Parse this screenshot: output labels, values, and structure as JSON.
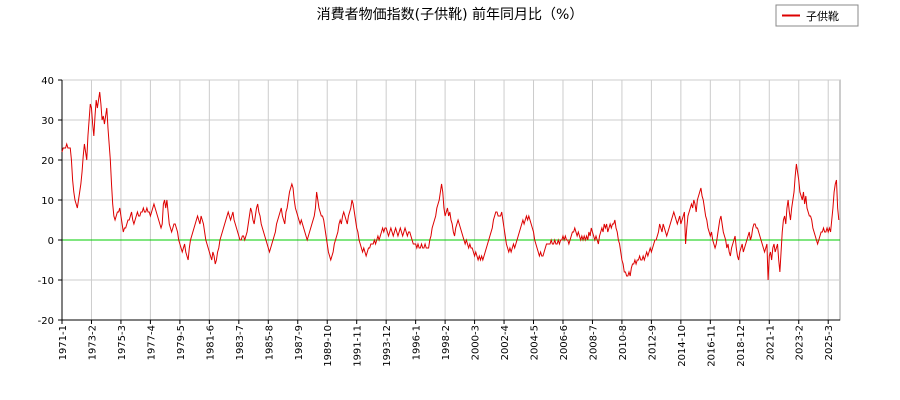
{
  "chart_data": {
    "type": "line",
    "title": "消費者物価指数(子供靴) 前年同月比（%）",
    "ylim": [
      -20,
      40
    ],
    "yticks": [
      -20,
      -10,
      0,
      10,
      20,
      30,
      40
    ],
    "grid": true,
    "zero_line_color": "#00cc00",
    "legend": "top-right",
    "categories": [
      "1971-1",
      null,
      null,
      null,
      null,
      null,
      null,
      null,
      null,
      null,
      null,
      null,
      null,
      null,
      null,
      null,
      null,
      null,
      null,
      null,
      null,
      null,
      null,
      null,
      null,
      "1973-2",
      null,
      null,
      null,
      null,
      null,
      null,
      null,
      null,
      null,
      null,
      null,
      null,
      null,
      null,
      null,
      null,
      null,
      null,
      null,
      null,
      null,
      null,
      null,
      null,
      "1975-3",
      null,
      null,
      null,
      null,
      null,
      null,
      null,
      null,
      null,
      null,
      null,
      null,
      null,
      null,
      null,
      null,
      null,
      null,
      null,
      null,
      null,
      null,
      null,
      null,
      "1977-4",
      null,
      null,
      null,
      null,
      null,
      null,
      null,
      null,
      null,
      null,
      null,
      null,
      null,
      null,
      null,
      null,
      null,
      null,
      null,
      null,
      null,
      null,
      null,
      null,
      "1979-5",
      null,
      null,
      null,
      null,
      null,
      null,
      null,
      null,
      null,
      null,
      null,
      null,
      null,
      null,
      null,
      null,
      null,
      null,
      null,
      null,
      null,
      null,
      null,
      null,
      "1981-6",
      null,
      null,
      null,
      null,
      null,
      null,
      null,
      null,
      null,
      null,
      null,
      null,
      null,
      null,
      null,
      null,
      null,
      null,
      null,
      null,
      null,
      null,
      null,
      null,
      "1983-7",
      null,
      null,
      null,
      null,
      null,
      null,
      null,
      null,
      null,
      null,
      null,
      null,
      null,
      null,
      null,
      null,
      null,
      null,
      null,
      null,
      null,
      null,
      null,
      null,
      "1985-8",
      null,
      null,
      null,
      null,
      null,
      null,
      null,
      null,
      null,
      null,
      null,
      null,
      null,
      null,
      null,
      null,
      null,
      null,
      null,
      null,
      null,
      null,
      null,
      null,
      "1987-9",
      null,
      null,
      null,
      null,
      null,
      null,
      null,
      null,
      null,
      null,
      null,
      null,
      null,
      null,
      null,
      null,
      null,
      null,
      null,
      null,
      null,
      null,
      null,
      null,
      "1989-10",
      null,
      null,
      null,
      null,
      null,
      null,
      null,
      null,
      null,
      null,
      null,
      null,
      null,
      null,
      null,
      null,
      null,
      null,
      null,
      null,
      null,
      null,
      null,
      null,
      "1991-11",
      null,
      null,
      null,
      null,
      null,
      null,
      null,
      null,
      null,
      null,
      null,
      null,
      null,
      null,
      null,
      null,
      null,
      null,
      null,
      null,
      null,
      null,
      null,
      null,
      "1993-12",
      null,
      null,
      null,
      null,
      null,
      null,
      null,
      null,
      null,
      null,
      null,
      null,
      null,
      null,
      null,
      null,
      null,
      null,
      null,
      null,
      null,
      null,
      null,
      null,
      "1996-1",
      null,
      null,
      null,
      null,
      null,
      null,
      null,
      null,
      null,
      null,
      null,
      null,
      null,
      null,
      null,
      null,
      null,
      null,
      null,
      null,
      null,
      null,
      null,
      null,
      "1998-2",
      null,
      null,
      null,
      null,
      null,
      null,
      null,
      null,
      null,
      null,
      null,
      null,
      null,
      null,
      null,
      null,
      null,
      null,
      null,
      null,
      null,
      null,
      null,
      null,
      "2000-3",
      null,
      null,
      null,
      null,
      null,
      null,
      null,
      null,
      null,
      null,
      null,
      null,
      null,
      null,
      null,
      null,
      null,
      null,
      null,
      null,
      null,
      null,
      null,
      null,
      "2002-4",
      null,
      null,
      null,
      null,
      null,
      null,
      null,
      null,
      null,
      null,
      null,
      null,
      null,
      null,
      null,
      null,
      null,
      null,
      null,
      null,
      null,
      null,
      null,
      null,
      "2004-5",
      null,
      null,
      null,
      null,
      null,
      null,
      null,
      null,
      null,
      null,
      null,
      null,
      null,
      null,
      null,
      null,
      null,
      null,
      null,
      null,
      null,
      null,
      null,
      null,
      "2006-6",
      null,
      null,
      null,
      null,
      null,
      null,
      null,
      null,
      null,
      null,
      null,
      null,
      null,
      null,
      null,
      null,
      null,
      null,
      null,
      null,
      null,
      null,
      null,
      null,
      "2008-7",
      null,
      null,
      null,
      null,
      null,
      null,
      null,
      null,
      null,
      null,
      null,
      null,
      null,
      null,
      null,
      null,
      null,
      null,
      null,
      null,
      null,
      null,
      null,
      null,
      "2010-8",
      null,
      null,
      null,
      null,
      null,
      null,
      null,
      null,
      null,
      null,
      null,
      null,
      null,
      null,
      null,
      null,
      null,
      null,
      null,
      null,
      null,
      null,
      null,
      null,
      "2012-9",
      null,
      null,
      null,
      null,
      null,
      null,
      null,
      null,
      null,
      null,
      null,
      null,
      null,
      null,
      null,
      null,
      null,
      null,
      null,
      null,
      null,
      null,
      null,
      null,
      "2014-10",
      null,
      null,
      null,
      null,
      null,
      null,
      null,
      null,
      null,
      null,
      null,
      null,
      null,
      null,
      null,
      null,
      null,
      null,
      null,
      null,
      null,
      null,
      null,
      null,
      "2016-11",
      null,
      null,
      null,
      null,
      null,
      null,
      null,
      null,
      null,
      null,
      null,
      null,
      null,
      null,
      null,
      null,
      null,
      null,
      null,
      null,
      null,
      null,
      null,
      null,
      "2018-12",
      null,
      null,
      null,
      null,
      null,
      null,
      null,
      null,
      null,
      null,
      null,
      null,
      null,
      null,
      null,
      null,
      null,
      null,
      null,
      null,
      null,
      null,
      null,
      null,
      "2021-1",
      null,
      null,
      null,
      null,
      null,
      null,
      null,
      null,
      null,
      null,
      null,
      null,
      null,
      null,
      null,
      null,
      null,
      null,
      null,
      null,
      null,
      null,
      null,
      null,
      "2023-2",
      null,
      null,
      null,
      null,
      null,
      null,
      null,
      null,
      null,
      null,
      null,
      null,
      null,
      null,
      null,
      null,
      null,
      null,
      null,
      null,
      null,
      null,
      null,
      null,
      "2025-3",
      null,
      null,
      null,
      null,
      null,
      null,
      null,
      null,
      null
    ],
    "series": [
      {
        "name": "子供靴",
        "color": "#dd0000",
        "values": [
          22,
          23,
          23,
          23,
          24,
          23,
          23,
          23,
          20,
          15,
          12,
          10,
          9,
          8,
          10,
          12,
          14,
          17,
          21,
          24,
          22,
          20,
          26,
          30,
          34,
          33,
          29,
          26,
          31,
          35,
          33,
          35,
          37,
          34,
          30,
          31,
          29,
          31,
          33,
          28,
          24,
          20,
          14,
          9,
          6,
          5,
          6,
          7,
          7,
          8,
          6,
          4,
          2,
          3,
          3,
          4,
          5,
          5,
          6,
          7,
          5,
          4,
          5,
          6,
          7,
          6,
          6,
          7,
          7,
          8,
          7,
          7,
          8,
          7,
          7,
          6,
          7,
          8,
          9,
          8,
          7,
          6,
          5,
          4,
          3,
          4,
          9,
          10,
          8,
          10,
          7,
          4,
          3,
          2,
          3,
          4,
          4,
          3,
          2,
          0,
          -1,
          -2,
          -3,
          -2,
          -1,
          -3,
          -4,
          -5,
          -2,
          0,
          1,
          2,
          3,
          4,
          5,
          6,
          5,
          4,
          6,
          5,
          4,
          2,
          0,
          -1,
          -2,
          -3,
          -4,
          -5,
          -3,
          -4,
          -6,
          -5,
          -3,
          -2,
          0,
          1,
          2,
          3,
          4,
          5,
          6,
          7,
          6,
          5,
          6,
          7,
          5,
          4,
          3,
          2,
          1,
          0,
          0,
          1,
          1,
          0,
          1,
          2,
          4,
          6,
          8,
          7,
          5,
          4,
          6,
          8,
          9,
          7,
          6,
          4,
          3,
          2,
          1,
          0,
          -1,
          -2,
          -3,
          -2,
          -1,
          0,
          1,
          2,
          4,
          5,
          6,
          7,
          8,
          6,
          5,
          4,
          7,
          8,
          10,
          12,
          13,
          14,
          13,
          10,
          8,
          7,
          6,
          5,
          4,
          5,
          4,
          3,
          2,
          1,
          0,
          1,
          2,
          3,
          4,
          5,
          6,
          8,
          12,
          10,
          8,
          7,
          6,
          6,
          5,
          3,
          1,
          -1,
          -3,
          -4,
          -5,
          -4,
          -3,
          -1,
          0,
          1,
          2,
          4,
          5,
          4,
          6,
          7,
          6,
          5,
          4,
          6,
          7,
          8,
          10,
          9,
          7,
          5,
          3,
          2,
          0,
          -1,
          -2,
          -3,
          -2,
          -3,
          -4,
          -3,
          -2,
          -2,
          -1,
          -1,
          -1,
          0,
          -1,
          0,
          1,
          0,
          1,
          2,
          3,
          2,
          3,
          3,
          2,
          1,
          2,
          3,
          2,
          1,
          2,
          3,
          2,
          1,
          2,
          3,
          2,
          1,
          2,
          3,
          2,
          1,
          2,
          2,
          1,
          0,
          -1,
          -1,
          -1,
          -2,
          -1,
          -2,
          -2,
          -1,
          -2,
          -2,
          -1,
          -2,
          -2,
          -2,
          0,
          1,
          3,
          4,
          5,
          6,
          8,
          9,
          10,
          12,
          14,
          12,
          8,
          6,
          7,
          8,
          6,
          7,
          5,
          4,
          2,
          1,
          3,
          4,
          5,
          4,
          3,
          2,
          1,
          0,
          -1,
          0,
          -1,
          -2,
          -1,
          -2,
          -2,
          -3,
          -4,
          -3,
          -4,
          -5,
          -4,
          -5,
          -4,
          -5,
          -4,
          -3,
          -2,
          -1,
          0,
          1,
          2,
          3,
          5,
          6,
          7,
          7,
          6,
          6,
          6,
          7,
          5,
          3,
          1,
          -1,
          -2,
          -3,
          -2,
          -3,
          -2,
          -1,
          -2,
          -1,
          0,
          1,
          2,
          3,
          4,
          5,
          4,
          5,
          6,
          5,
          6,
          5,
          4,
          3,
          2,
          0,
          -1,
          -2,
          -3,
          -4,
          -3,
          -4,
          -4,
          -3,
          -2,
          -1,
          -1,
          -1,
          -1,
          0,
          -1,
          -1,
          0,
          -1,
          -1,
          0,
          -1,
          0,
          0,
          1,
          0,
          1,
          0,
          0,
          -1,
          0,
          1,
          2,
          2,
          3,
          2,
          1,
          2,
          1,
          0,
          1,
          0,
          1,
          0,
          1,
          0,
          2,
          1,
          3,
          2,
          1,
          0,
          1,
          0,
          -1,
          1,
          2,
          3,
          2,
          4,
          3,
          4,
          2,
          3,
          4,
          3,
          4,
          4,
          5,
          3,
          2,
          0,
          -1,
          -3,
          -5,
          -6,
          -8,
          -8,
          -9,
          -9,
          -8,
          -9,
          -7,
          -6,
          -6,
          -5,
          -6,
          -5,
          -5,
          -4,
          -5,
          -5,
          -4,
          -5,
          -4,
          -3,
          -4,
          -3,
          -2,
          -3,
          -2,
          -1,
          0,
          0,
          1,
          2,
          4,
          3,
          2,
          4,
          3,
          2,
          1,
          2,
          3,
          4,
          5,
          6,
          7,
          6,
          5,
          4,
          5,
          6,
          4,
          5,
          6,
          7,
          -1,
          3,
          6,
          7,
          8,
          9,
          8,
          10,
          9,
          7,
          10,
          11,
          12,
          13,
          11,
          10,
          8,
          6,
          5,
          3,
          2,
          1,
          2,
          0,
          -1,
          -2,
          -1,
          1,
          3,
          5,
          6,
          4,
          2,
          1,
          0,
          -2,
          -1,
          -3,
          -4,
          -2,
          -1,
          0,
          1,
          -2,
          -4,
          -5,
          -3,
          -2,
          -1,
          -3,
          -2,
          -1,
          0,
          1,
          2,
          0,
          1,
          3,
          4,
          4,
          3,
          3,
          2,
          1,
          0,
          -1,
          -2,
          -3,
          -2,
          -1,
          -10,
          -4,
          -3,
          -5,
          -2,
          -1,
          -3,
          -2,
          -1,
          -5,
          -8,
          -3,
          2,
          5,
          6,
          4,
          8,
          10,
          7,
          5,
          8,
          10,
          12,
          16,
          19,
          17,
          15,
          12,
          11,
          10,
          12,
          9,
          11,
          8,
          7,
          6,
          6,
          5,
          3,
          2,
          1,
          0,
          -1,
          0,
          1,
          2,
          2,
          3,
          2,
          2,
          3,
          2,
          3,
          2,
          5,
          8,
          12,
          14,
          15,
          8,
          5
        ]
      }
    ]
  }
}
